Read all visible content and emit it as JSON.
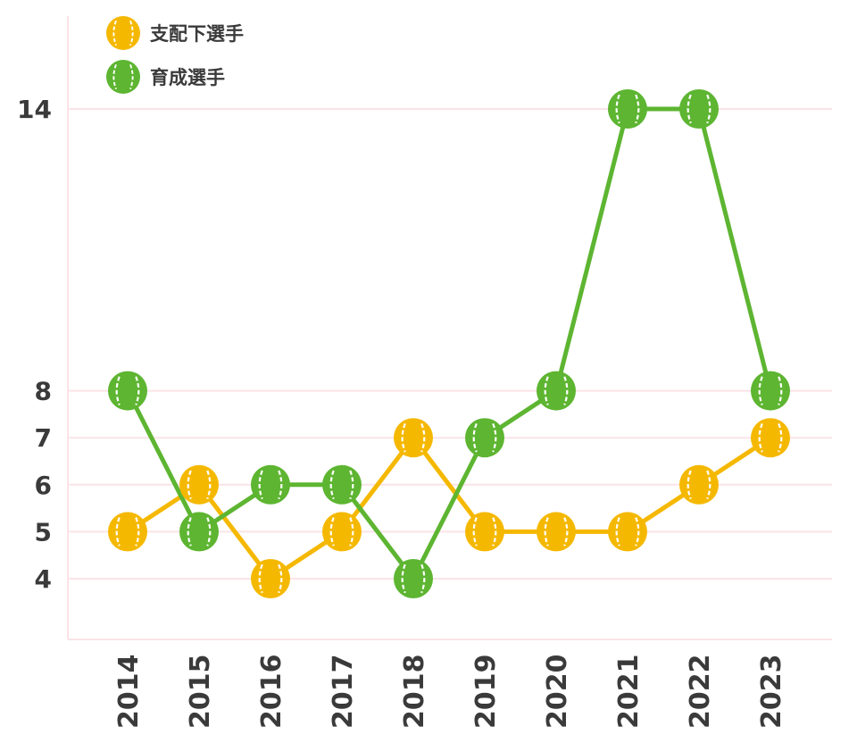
{
  "chart_data": {
    "type": "line",
    "categories": [
      "2014",
      "2015",
      "2016",
      "2017",
      "2018",
      "2019",
      "2020",
      "2021",
      "2022",
      "2023"
    ],
    "series": [
      {
        "name": "支配下選手",
        "color": "#f5b800",
        "values": [
          5,
          6,
          4,
          5,
          7,
          5,
          5,
          5,
          6,
          7
        ]
      },
      {
        "name": "育成選手",
        "color": "#5db531",
        "values": [
          8,
          5,
          6,
          6,
          4,
          7,
          8,
          14,
          14,
          8
        ]
      }
    ],
    "yticks": [
      4,
      5,
      6,
      7,
      8,
      14
    ],
    "ylim": [
      3,
      15.5
    ],
    "marker": "baseball-icon",
    "grid": true,
    "grid_color": "#fbe3e8",
    "legend_position": "top-left"
  }
}
